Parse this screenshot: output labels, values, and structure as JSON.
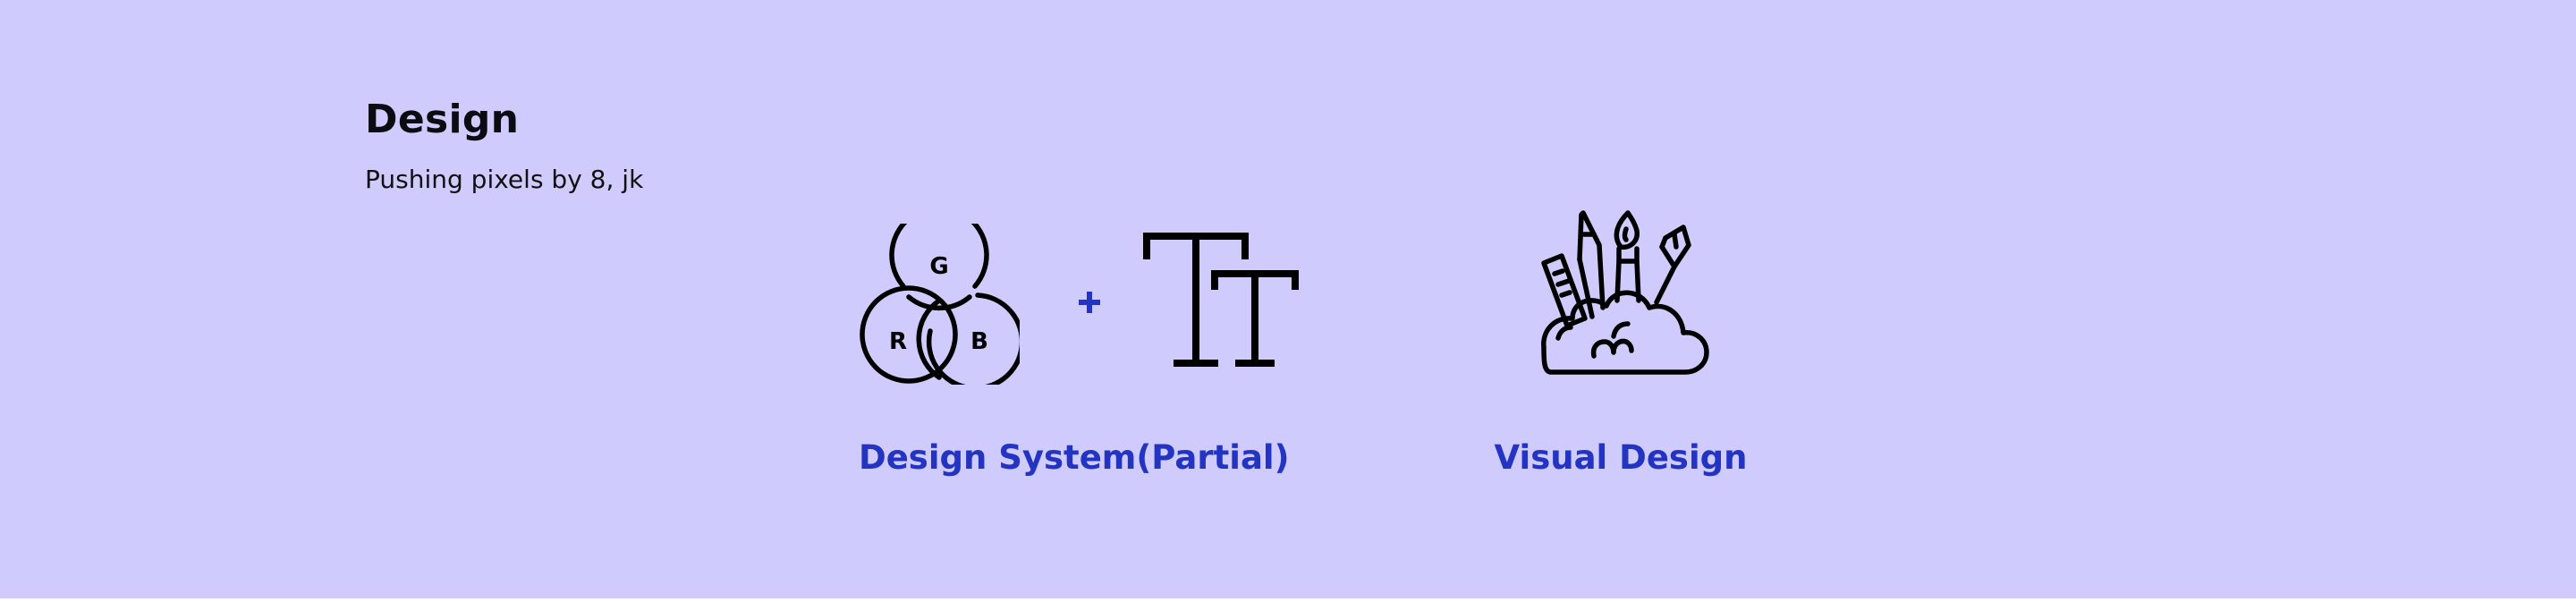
{
  "section": {
    "title": "Design",
    "subtitle": "Pushing pixels by 8, jk"
  },
  "cards": [
    {
      "label": "Design System(Partial)",
      "icons": [
        "rgb-venn-icon",
        "plus-icon",
        "typography-icon"
      ]
    },
    {
      "label": "Visual Design",
      "icons": [
        "art-tools-cloud-icon"
      ]
    }
  ],
  "rgb_icon_letters": {
    "top": "G",
    "left": "R",
    "right": "B"
  },
  "colors": {
    "background": "#cfcbfd",
    "accent": "#2434c2",
    "heading": "#0b0b12",
    "icon_stroke": "#000000"
  }
}
